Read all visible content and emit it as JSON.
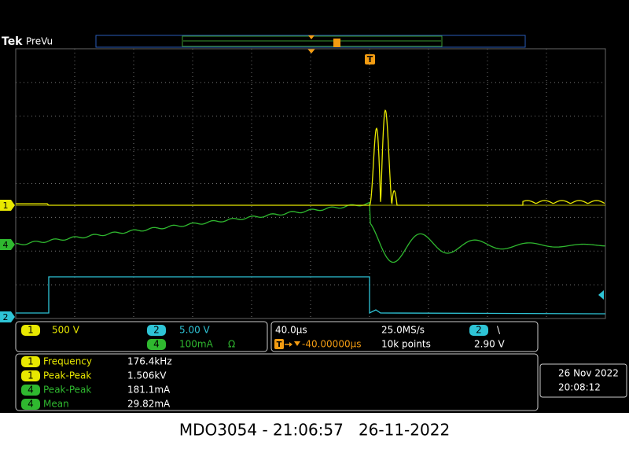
{
  "header": {
    "brand": "Tek",
    "mode": "PreVu"
  },
  "markers": {
    "trigger": "T",
    "ch1": "1",
    "ch4": "4",
    "ch2": "2"
  },
  "channels": [
    {
      "number": "1",
      "scale": "500 V"
    },
    {
      "number": "2",
      "scale": "5.00 V"
    },
    {
      "number": "4",
      "scale": "100mA",
      "unit_symbol": "Ω"
    }
  ],
  "timebase": {
    "horizontal_scale": "40.0µs",
    "sample_rate": "25.0MS/s",
    "trigger_source": "2",
    "trigger_slope": "\\",
    "delay": "-40.00000µs",
    "record_length": "10k points",
    "trigger_level": "2.90 V"
  },
  "measurements": [
    {
      "channel": "1",
      "name": "Frequency",
      "value": "176.4kHz"
    },
    {
      "channel": "1",
      "name": "Peak-Peak",
      "value": "1.506kV"
    },
    {
      "channel": "4",
      "name": "Peak-Peak",
      "value": "181.1mA"
    },
    {
      "channel": "4",
      "name": "Mean",
      "value": "29.82mA"
    }
  ],
  "datetime": {
    "date": "26 Nov 2022",
    "time": "20:08:12"
  },
  "caption": "MDO3054 - 21:06:57   26-11-2022"
}
